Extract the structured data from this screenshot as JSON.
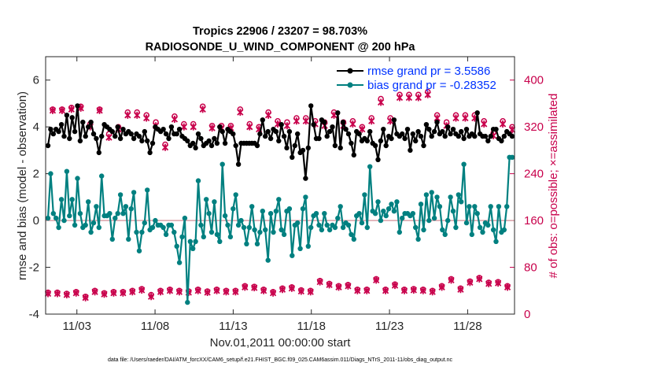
{
  "chart_data": {
    "type": "line",
    "title": "Tropics 22906 / 23207 = 98.703%",
    "subtitle": "RADIOSONDE_U_WIND_COMPONENT @ 200 hPa",
    "xlabel": "Nov.01,2011 00:00:00 start",
    "ylabel": "rmse and bias (model - observation)",
    "ylabel_right": "# of obs: o=possible; ×=assimilated",
    "x_tick_labels": [
      "11/03",
      "11/08",
      "11/13",
      "11/18",
      "11/23",
      "11/28"
    ],
    "x_tick_days": [
      3,
      8,
      13,
      18,
      23,
      28
    ],
    "xlim_days": [
      1,
      31
    ],
    "ylim": [
      -4,
      7
    ],
    "y_ticks": [
      -4,
      -2,
      0,
      2,
      4,
      6
    ],
    "ylim_right": [
      0,
      440
    ],
    "y_ticks_right": [
      0,
      80,
      160,
      240,
      320,
      400
    ],
    "legend_location": "top-right",
    "legend": [
      "rmse grand pr = 3.5586",
      "bias grand pr = -0.28352"
    ],
    "footnote": "data file: /Users/raeder/DAI/ATM_forcXX/CAM6_setup/f.e21.FHIST_BGC.f09_025.CAM6assim.011/Diags_NTrS_2011-11/obs_diag_output.nc",
    "colors": {
      "rmse": "#000000",
      "bias": "#008080",
      "obs": "#c8004b",
      "zero_line": "#d9a0a8",
      "legend_text": "#0033ff"
    },
    "rmse_series": [
      3.2,
      3.9,
      3.7,
      3.9,
      3.8,
      4.1,
      3.6,
      4.5,
      3.5,
      4.4,
      3.8,
      4.9,
      3.4,
      4.2,
      3.6,
      4.0,
      4.2,
      3.7,
      3.5,
      2.9,
      3.6,
      4.1,
      4.0,
      3.9,
      3.8,
      3.6,
      4.0,
      3.5,
      3.9,
      3.7,
      3.8,
      3.7,
      3.5,
      3.7,
      3.6,
      3.4,
      3.8,
      3.4,
      2.9,
      3.3,
      4.0,
      3.9,
      3.8,
      3.9,
      3.7,
      3.5,
      4.0,
      3.7,
      3.7,
      3.9,
      3.6,
      3.5,
      3.4,
      3.2,
      3.3,
      3.1,
      3.7,
      3.5,
      3.2,
      3.3,
      3.4,
      3.2,
      3.5,
      3.3,
      4.0,
      3.8,
      3.3,
      3.9,
      3.8,
      3.7,
      3.2,
      2.4,
      3.3,
      3.3,
      3.3,
      3.3,
      3.3,
      3.3,
      3.2,
      3.7,
      4.3,
      3.6,
      3.8,
      3.5,
      3.9,
      3.8,
      3.4,
      4.1,
      3.6,
      3.1,
      3.8,
      2.7,
      3.2,
      3.7,
      2.9,
      3.0,
      1.8,
      3.1,
      4.9,
      4.1,
      3.5,
      3.5,
      4.3,
      4.2,
      3.6,
      3.8,
      4.0,
      3.2,
      4.6,
      3.1,
      4.2,
      3.9,
      3.7,
      3.3,
      2.8,
      3.8,
      3.7,
      3.4,
      3.5,
      3.4,
      3.8,
      3.3,
      3.2,
      2.6,
      3.4,
      3.9,
      3.2,
      3.6,
      3.5,
      4.3,
      3.7,
      3.6,
      3.7,
      3.5,
      3.9,
      3.0,
      3.7,
      3.4,
      3.8,
      3.6,
      3.2,
      4.1,
      3.9,
      3.6,
      3.8,
      4.2,
      3.7,
      3.8,
      3.6,
      4.0,
      3.7,
      3.9,
      3.7,
      3.6,
      3.8,
      3.5,
      3.9,
      3.6,
      3.7,
      3.6,
      4.6,
      3.7,
      3.6,
      3.6,
      3.4,
      3.6,
      3.9,
      3.9,
      3.5,
      3.4,
      3.6,
      3.8,
      3.7,
      3.6
    ],
    "bias_series": [
      0.1,
      2.0,
      0.3,
      0.1,
      -0.3,
      0.9,
      0.0,
      2.1,
      0.2,
      0.9,
      -0.2,
      1.8,
      0.3,
      -0.3,
      -0.2,
      0.8,
      -0.5,
      -0.1,
      0.6,
      -0.3,
      1.9,
      0.2,
      0.2,
      0.3,
      -0.8,
      0.1,
      0.3,
      1.1,
      0.3,
      0.6,
      -0.8,
      0.5,
      1.2,
      -0.5,
      -1.3,
      -0.5,
      -0.1,
      1.3,
      -0.4,
      -0.3,
      0.0,
      -0.2,
      -0.2,
      -0.3,
      -0.6,
      -0.2,
      -0.2,
      -0.5,
      -1.1,
      -1.8,
      -0.7,
      0.1,
      -3.5,
      -0.9,
      -1.2,
      -0.9,
      1.7,
      -0.2,
      -0.7,
      0.9,
      0.3,
      -0.5,
      0.8,
      -0.6,
      -0.9,
      2.4,
      0.2,
      -0.2,
      -0.7,
      0.5,
      1.1,
      -0.2,
      0.0,
      -0.3,
      -1.0,
      -0.3,
      0.6,
      -0.4,
      -1.0,
      -0.5,
      0.4,
      -0.4,
      -1.7,
      0.3,
      -0.5,
      0.4,
      0.9,
      -0.4,
      -0.6,
      0.4,
      0.5,
      -1.5,
      -0.2,
      -0.1,
      -1.2,
      0.5,
      1.0,
      -1.1,
      -0.3,
      0.2,
      0.3,
      -0.2,
      -0.4,
      0.3,
      -0.2,
      -0.4,
      -0.2,
      -0.3,
      0.1,
      0.6,
      -0.3,
      -0.1,
      -0.2,
      -0.6,
      -0.8,
      0.2,
      0.3,
      -0.1,
      1.1,
      -0.3,
      2.3,
      0.4,
      0.3,
      0.8,
      0.0,
      0.4,
      0.2,
      0.5,
      0.7,
      0.4,
      0.8,
      -0.5,
      0.1,
      0.3,
      0.3,
      0.2,
      0.3,
      -0.3,
      -0.8,
      0.7,
      -0.4,
      1.1,
      0.0,
      1.2,
      0.1,
      1.0,
      0.6,
      -0.4,
      -0.6,
      0.0,
      1.0,
      0.4,
      -0.3,
      1.1,
      0.8,
      2.4,
      -0.1,
      0.6,
      -0.6,
      0.6,
      0.3,
      -0.3,
      -0.5,
      -0.1,
      -0.2,
      0.6,
      -0.4,
      -0.9,
      0.6,
      -0.5,
      -0.4,
      0.6,
      2.7,
      2.7
    ],
    "obs_possible_series": [
      37,
      350,
      37,
      350,
      35,
      353,
      38,
      355,
      30,
      325,
      40,
      350,
      36,
      308,
      38,
      320,
      38,
      345,
      40,
      345,
      43,
      340,
      33,
      328,
      40,
      290,
      42,
      338,
      40,
      325,
      39,
      325,
      42,
      355,
      39,
      322,
      42,
      322,
      40,
      322,
      40,
      350,
      48,
      325,
      47,
      320,
      42,
      345,
      38,
      330,
      44,
      328,
      46,
      335,
      41,
      335,
      40,
      330,
      57,
      328,
      52,
      345,
      48,
      328,
      50,
      330,
      42,
      320,
      42,
      335,
      60,
      368,
      42,
      335,
      51,
      375,
      42,
      375,
      43,
      375,
      42,
      380,
      40,
      340,
      48,
      328,
      60,
      340,
      44,
      340,
      56,
      340,
      62,
      330,
      54,
      310,
      55,
      330,
      48,
      320
    ],
    "obs_assimilated_series": [
      35,
      348,
      35,
      348,
      33,
      350,
      36,
      352,
      28,
      320,
      38,
      348,
      34,
      302,
      36,
      316,
      36,
      340,
      38,
      340,
      41,
      335,
      30,
      322,
      38,
      285,
      40,
      333,
      38,
      320,
      37,
      320,
      40,
      350,
      37,
      318,
      40,
      318,
      38,
      318,
      38,
      345,
      46,
      320,
      45,
      316,
      40,
      340,
      36,
      325,
      42,
      322,
      44,
      330,
      39,
      330,
      38,
      325,
      55,
      322,
      50,
      340,
      46,
      322,
      48,
      325,
      40,
      316,
      40,
      330,
      58,
      362,
      40,
      330,
      49,
      370,
      40,
      370,
      41,
      370,
      40,
      375,
      38,
      335,
      46,
      322,
      58,
      335,
      42,
      335,
      54,
      335,
      60,
      325,
      52,
      305,
      53,
      325,
      46,
      315
    ]
  }
}
